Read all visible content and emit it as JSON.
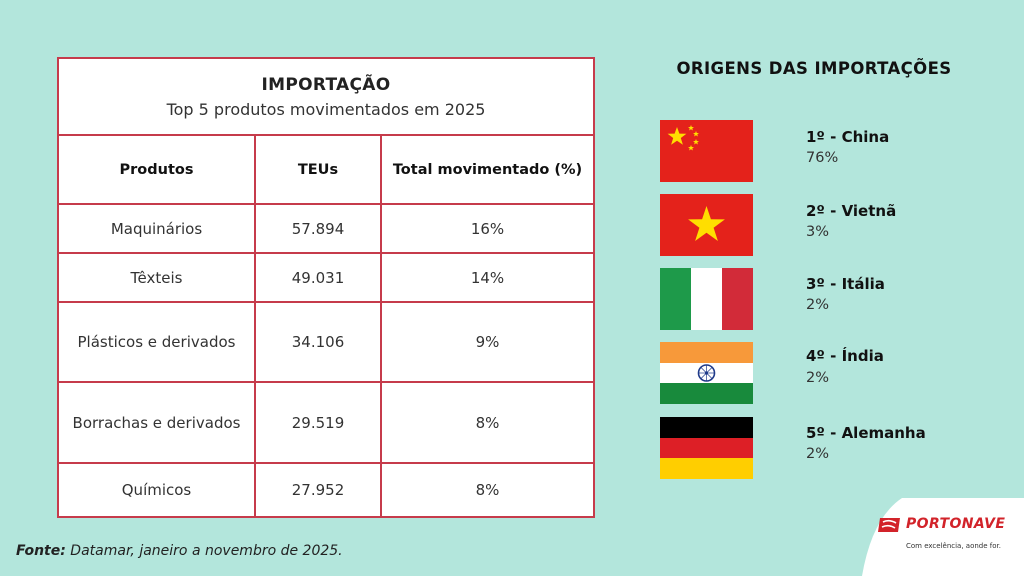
{
  "table": {
    "title": "IMPORTAÇÃO",
    "subtitle": "Top 5 produtos movimentados em 2025",
    "headers": [
      "Produtos",
      "TEUs",
      "Total movimentado (%)"
    ],
    "rows": [
      {
        "product": "Maquinários",
        "teus": "57.894",
        "pct": "16%"
      },
      {
        "product": "Têxteis",
        "teus": "49.031",
        "pct": "14%"
      },
      {
        "product": "Plásticos e derivados",
        "teus": "34.106",
        "pct": "9%"
      },
      {
        "product": "Borrachas e derivados",
        "teus": "29.519",
        "pct": "8%"
      },
      {
        "product": "Químicos",
        "teus": "27.952",
        "pct": "8%"
      }
    ]
  },
  "source": {
    "label": "Fonte:",
    "text": " Datamar, janeiro a novembro de 2025."
  },
  "origins": {
    "title": "ORIGENS DAS IMPORTAÇÕES",
    "items": [
      {
        "name": "1º - China",
        "pct": "76%",
        "flag": "china-flag"
      },
      {
        "name": "2º - Vietnã",
        "pct": "3%",
        "flag": "vietnam-flag"
      },
      {
        "name": "3º - Itália",
        "pct": "2%",
        "flag": "italy-flag"
      },
      {
        "name": "4º - Índia",
        "pct": "2%",
        "flag": "india-flag"
      },
      {
        "name": "5º - Alemanha",
        "pct": "2%",
        "flag": "germany-flag"
      }
    ]
  },
  "brand": {
    "name": "PORTONAVE",
    "tagline": "Com excelência, aonde for.",
    "color": "#d2232a"
  },
  "colors": {
    "background": "#b3e6dc",
    "table_border": "#c63b4b"
  }
}
